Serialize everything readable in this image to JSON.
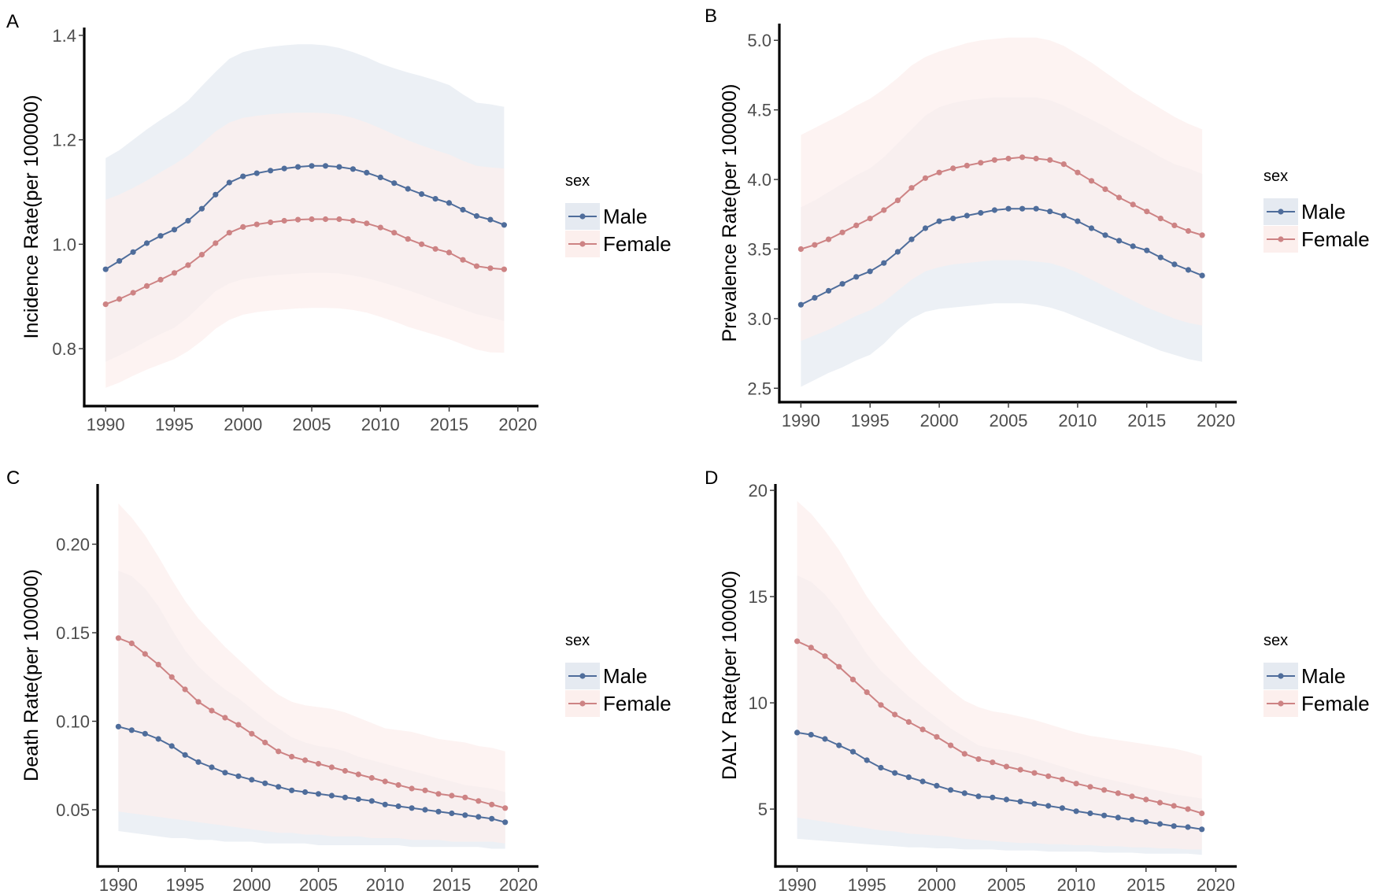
{
  "colors": {
    "male": "#4f6d9b",
    "female": "#cd8384",
    "male_band": "#e5eaf1",
    "female_band": "#fcefed"
  },
  "legend": {
    "title": "sex",
    "items": [
      "Male",
      "Female"
    ]
  },
  "chart_data": [
    {
      "type": "line",
      "panel": "A",
      "ylabel": "Incidence Rate(per 100000)",
      "xlabel": "",
      "xlim": [
        1988.5,
        2021.5
      ],
      "ylim": [
        0.69,
        1.415
      ],
      "xticks": [
        1990,
        1995,
        2000,
        2005,
        2010,
        2015,
        2020
      ],
      "yticks": [
        0.8,
        1.0,
        1.2,
        1.4
      ],
      "ytick_labels": [
        "0.8",
        "1.0",
        "1.2",
        "1.4"
      ],
      "x": [
        1990,
        1991,
        1992,
        1993,
        1994,
        1995,
        1996,
        1997,
        1998,
        1999,
        2000,
        2001,
        2002,
        2003,
        2004,
        2005,
        2006,
        2007,
        2008,
        2009,
        2010,
        2011,
        2012,
        2013,
        2014,
        2015,
        2016,
        2017,
        2018,
        2019
      ],
      "series": [
        {
          "name": "Male",
          "values": [
            0.952,
            0.968,
            0.985,
            1.002,
            1.016,
            1.028,
            1.045,
            1.068,
            1.095,
            1.118,
            1.13,
            1.136,
            1.141,
            1.145,
            1.148,
            1.15,
            1.15,
            1.148,
            1.144,
            1.137,
            1.128,
            1.117,
            1.106,
            1.096,
            1.087,
            1.079,
            1.066,
            1.054,
            1.047,
            1.037
          ],
          "lower": [
            0.775,
            0.787,
            0.8,
            0.815,
            0.828,
            0.84,
            0.86,
            0.885,
            0.91,
            0.925,
            0.933,
            0.937,
            0.94,
            0.942,
            0.944,
            0.945,
            0.945,
            0.944,
            0.94,
            0.935,
            0.928,
            0.92,
            0.912,
            0.903,
            0.893,
            0.884,
            0.875,
            0.866,
            0.86,
            0.853
          ],
          "upper": [
            1.165,
            1.18,
            1.2,
            1.22,
            1.238,
            1.255,
            1.275,
            1.303,
            1.33,
            1.355,
            1.368,
            1.374,
            1.378,
            1.381,
            1.383,
            1.383,
            1.381,
            1.376,
            1.368,
            1.358,
            1.346,
            1.337,
            1.329,
            1.322,
            1.314,
            1.305,
            1.287,
            1.271,
            1.268,
            1.263
          ]
        },
        {
          "name": "Female",
          "values": [
            0.885,
            0.895,
            0.907,
            0.92,
            0.932,
            0.945,
            0.96,
            0.98,
            1.002,
            1.022,
            1.033,
            1.038,
            1.042,
            1.045,
            1.047,
            1.048,
            1.048,
            1.048,
            1.045,
            1.04,
            1.032,
            1.022,
            1.01,
            1.0,
            0.991,
            0.984,
            0.97,
            0.958,
            0.954,
            0.952
          ],
          "lower": [
            0.725,
            0.735,
            0.748,
            0.76,
            0.77,
            0.78,
            0.795,
            0.815,
            0.838,
            0.855,
            0.865,
            0.87,
            0.873,
            0.875,
            0.877,
            0.878,
            0.878,
            0.877,
            0.874,
            0.869,
            0.861,
            0.852,
            0.842,
            0.834,
            0.826,
            0.818,
            0.808,
            0.798,
            0.793,
            0.792
          ],
          "upper": [
            1.085,
            1.095,
            1.108,
            1.122,
            1.138,
            1.153,
            1.17,
            1.193,
            1.216,
            1.233,
            1.242,
            1.246,
            1.249,
            1.251,
            1.252,
            1.252,
            1.251,
            1.248,
            1.242,
            1.233,
            1.222,
            1.21,
            1.199,
            1.189,
            1.18,
            1.172,
            1.16,
            1.15,
            1.147,
            1.145
          ]
        }
      ]
    },
    {
      "type": "line",
      "panel": "B",
      "ylabel": "Prevalence Rate(per 100000)",
      "xlabel": "",
      "xlim": [
        1988.5,
        2021.5
      ],
      "ylim": [
        2.4,
        5.12
      ],
      "xticks": [
        1990,
        1995,
        2000,
        2005,
        2010,
        2015,
        2020
      ],
      "yticks": [
        2.5,
        3.0,
        3.5,
        4.0,
        4.5,
        5.0
      ],
      "ytick_labels": [
        "2.5",
        "3.0",
        "3.5",
        "4.0",
        "4.5",
        "5.0"
      ],
      "x": [
        1990,
        1991,
        1992,
        1993,
        1994,
        1995,
        1996,
        1997,
        1998,
        1999,
        2000,
        2001,
        2002,
        2003,
        2004,
        2005,
        2006,
        2007,
        2008,
        2009,
        2010,
        2011,
        2012,
        2013,
        2014,
        2015,
        2016,
        2017,
        2018,
        2019
      ],
      "series": [
        {
          "name": "Male",
          "values": [
            3.1,
            3.15,
            3.2,
            3.25,
            3.3,
            3.34,
            3.4,
            3.48,
            3.57,
            3.65,
            3.7,
            3.72,
            3.74,
            3.76,
            3.78,
            3.79,
            3.79,
            3.79,
            3.77,
            3.74,
            3.7,
            3.65,
            3.6,
            3.56,
            3.52,
            3.49,
            3.44,
            3.39,
            3.35,
            3.31
          ],
          "lower": [
            2.51,
            2.56,
            2.61,
            2.65,
            2.7,
            2.74,
            2.82,
            2.92,
            3.0,
            3.05,
            3.07,
            3.08,
            3.09,
            3.1,
            3.11,
            3.11,
            3.11,
            3.1,
            3.08,
            3.05,
            3.01,
            2.97,
            2.93,
            2.89,
            2.85,
            2.81,
            2.77,
            2.74,
            2.71,
            2.69
          ],
          "upper": [
            3.8,
            3.85,
            3.91,
            3.97,
            4.03,
            4.08,
            4.16,
            4.26,
            4.36,
            4.46,
            4.52,
            4.55,
            4.57,
            4.58,
            4.59,
            4.59,
            4.59,
            4.59,
            4.57,
            4.53,
            4.48,
            4.43,
            4.38,
            4.32,
            4.27,
            4.22,
            4.16,
            4.11,
            4.08,
            4.04
          ]
        },
        {
          "name": "Female",
          "values": [
            3.5,
            3.53,
            3.57,
            3.62,
            3.67,
            3.72,
            3.78,
            3.85,
            3.94,
            4.01,
            4.05,
            4.08,
            4.1,
            4.12,
            4.14,
            4.15,
            4.16,
            4.15,
            4.14,
            4.11,
            4.05,
            3.99,
            3.93,
            3.87,
            3.82,
            3.77,
            3.72,
            3.67,
            3.63,
            3.6
          ],
          "lower": [
            2.84,
            2.88,
            2.92,
            2.97,
            3.02,
            3.06,
            3.12,
            3.2,
            3.28,
            3.34,
            3.37,
            3.39,
            3.4,
            3.41,
            3.42,
            3.42,
            3.42,
            3.41,
            3.4,
            3.37,
            3.33,
            3.28,
            3.23,
            3.18,
            3.13,
            3.08,
            3.04,
            3.0,
            2.97,
            2.95
          ],
          "upper": [
            4.32,
            4.37,
            4.42,
            4.47,
            4.53,
            4.58,
            4.65,
            4.73,
            4.82,
            4.88,
            4.92,
            4.95,
            4.98,
            5.0,
            5.01,
            5.02,
            5.02,
            5.02,
            5.0,
            4.96,
            4.9,
            4.84,
            4.77,
            4.7,
            4.63,
            4.57,
            4.51,
            4.45,
            4.4,
            4.36
          ]
        }
      ]
    },
    {
      "type": "line",
      "panel": "C",
      "ylabel": "Death Rate(per 100000)",
      "xlabel": "",
      "xlim": [
        1988.5,
        2021.5
      ],
      "ylim": [
        0.018,
        0.234
      ],
      "xticks": [
        1990,
        1995,
        2000,
        2005,
        2010,
        2015,
        2020
      ],
      "yticks": [
        0.05,
        0.1,
        0.15,
        0.2
      ],
      "ytick_labels": [
        "0.05",
        "0.10",
        "0.15",
        "0.20"
      ],
      "x": [
        1990,
        1991,
        1992,
        1993,
        1994,
        1995,
        1996,
        1997,
        1998,
        1999,
        2000,
        2001,
        2002,
        2003,
        2004,
        2005,
        2006,
        2007,
        2008,
        2009,
        2010,
        2011,
        2012,
        2013,
        2014,
        2015,
        2016,
        2017,
        2018,
        2019
      ],
      "series": [
        {
          "name": "Male",
          "values": [
            0.097,
            0.095,
            0.093,
            0.09,
            0.086,
            0.081,
            0.077,
            0.074,
            0.071,
            0.069,
            0.067,
            0.065,
            0.063,
            0.061,
            0.06,
            0.059,
            0.058,
            0.057,
            0.056,
            0.055,
            0.053,
            0.052,
            0.051,
            0.05,
            0.049,
            0.048,
            0.047,
            0.046,
            0.045,
            0.043
          ],
          "lower": [
            0.038,
            0.037,
            0.036,
            0.035,
            0.034,
            0.034,
            0.033,
            0.033,
            0.032,
            0.032,
            0.032,
            0.031,
            0.031,
            0.031,
            0.031,
            0.03,
            0.03,
            0.03,
            0.03,
            0.03,
            0.03,
            0.03,
            0.029,
            0.029,
            0.029,
            0.029,
            0.029,
            0.029,
            0.028,
            0.028
          ],
          "upper": [
            0.185,
            0.182,
            0.175,
            0.165,
            0.152,
            0.14,
            0.131,
            0.124,
            0.118,
            0.113,
            0.107,
            0.101,
            0.096,
            0.091,
            0.088,
            0.086,
            0.085,
            0.083,
            0.08,
            0.078,
            0.076,
            0.074,
            0.072,
            0.07,
            0.068,
            0.066,
            0.064,
            0.063,
            0.062,
            0.06
          ]
        },
        {
          "name": "Female",
          "values": [
            0.147,
            0.144,
            0.138,
            0.132,
            0.125,
            0.118,
            0.111,
            0.106,
            0.102,
            0.098,
            0.093,
            0.088,
            0.083,
            0.08,
            0.078,
            0.076,
            0.074,
            0.072,
            0.07,
            0.068,
            0.066,
            0.064,
            0.062,
            0.061,
            0.059,
            0.058,
            0.057,
            0.055,
            0.053,
            0.051
          ],
          "lower": [
            0.049,
            0.048,
            0.047,
            0.046,
            0.045,
            0.044,
            0.043,
            0.042,
            0.041,
            0.04,
            0.039,
            0.038,
            0.037,
            0.037,
            0.036,
            0.036,
            0.035,
            0.035,
            0.035,
            0.034,
            0.034,
            0.034,
            0.033,
            0.033,
            0.033,
            0.032,
            0.032,
            0.032,
            0.032,
            0.031
          ],
          "upper": [
            0.223,
            0.215,
            0.205,
            0.193,
            0.18,
            0.168,
            0.158,
            0.15,
            0.142,
            0.135,
            0.128,
            0.121,
            0.115,
            0.111,
            0.109,
            0.108,
            0.107,
            0.105,
            0.102,
            0.099,
            0.096,
            0.095,
            0.094,
            0.092,
            0.09,
            0.089,
            0.088,
            0.086,
            0.085,
            0.083
          ]
        }
      ]
    },
    {
      "type": "line",
      "panel": "D",
      "ylabel": "DALY Rate(per 100000)",
      "xlabel": "",
      "xlim": [
        1988.5,
        2021.5
      ],
      "ylim": [
        2.3,
        20.3
      ],
      "xticks": [
        1990,
        1995,
        2000,
        2005,
        2010,
        2015,
        2020
      ],
      "yticks": [
        5,
        10,
        15,
        20
      ],
      "ytick_labels": [
        "5",
        "10",
        "15",
        "20"
      ],
      "x": [
        1990,
        1991,
        1992,
        1993,
        1994,
        1995,
        1996,
        1997,
        1998,
        1999,
        2000,
        2001,
        2002,
        2003,
        2004,
        2005,
        2006,
        2007,
        2008,
        2009,
        2010,
        2011,
        2012,
        2013,
        2014,
        2015,
        2016,
        2017,
        2018,
        2019
      ],
      "series": [
        {
          "name": "Male",
          "values": [
            8.6,
            8.5,
            8.3,
            8.0,
            7.7,
            7.3,
            6.95,
            6.7,
            6.5,
            6.3,
            6.1,
            5.9,
            5.75,
            5.6,
            5.55,
            5.45,
            5.35,
            5.25,
            5.15,
            5.05,
            4.9,
            4.8,
            4.7,
            4.6,
            4.5,
            4.4,
            4.3,
            4.2,
            4.15,
            4.05
          ],
          "lower": [
            3.6,
            3.55,
            3.5,
            3.45,
            3.4,
            3.35,
            3.3,
            3.25,
            3.2,
            3.2,
            3.15,
            3.15,
            3.1,
            3.1,
            3.1,
            3.05,
            3.05,
            3.05,
            3.0,
            3.0,
            3.0,
            3.0,
            2.95,
            2.95,
            2.95,
            2.9,
            2.9,
            2.9,
            2.9,
            2.85
          ],
          "upper": [
            16.0,
            15.7,
            15.1,
            14.3,
            13.3,
            12.3,
            11.5,
            10.9,
            10.3,
            9.8,
            9.3,
            8.8,
            8.4,
            8.0,
            7.85,
            7.75,
            7.6,
            7.4,
            7.2,
            7.0,
            6.8,
            6.6,
            6.45,
            6.3,
            6.15,
            6.0,
            5.85,
            5.7,
            5.6,
            5.5
          ]
        },
        {
          "name": "Female",
          "values": [
            12.9,
            12.6,
            12.2,
            11.7,
            11.1,
            10.5,
            9.9,
            9.45,
            9.1,
            8.75,
            8.4,
            8.0,
            7.6,
            7.35,
            7.2,
            7.0,
            6.85,
            6.7,
            6.55,
            6.4,
            6.2,
            6.05,
            5.9,
            5.75,
            5.6,
            5.45,
            5.3,
            5.15,
            5.0,
            4.8
          ],
          "lower": [
            4.6,
            4.5,
            4.4,
            4.3,
            4.2,
            4.1,
            4.0,
            3.95,
            3.85,
            3.8,
            3.75,
            3.7,
            3.6,
            3.55,
            3.5,
            3.45,
            3.4,
            3.4,
            3.35,
            3.35,
            3.3,
            3.3,
            3.25,
            3.25,
            3.2,
            3.2,
            3.15,
            3.15,
            3.1,
            3.1
          ],
          "upper": [
            19.5,
            18.9,
            18.1,
            17.2,
            16.1,
            15.0,
            14.1,
            13.3,
            12.5,
            11.8,
            11.2,
            10.6,
            10.1,
            9.8,
            9.6,
            9.5,
            9.35,
            9.2,
            9.0,
            8.8,
            8.6,
            8.45,
            8.35,
            8.25,
            8.15,
            8.05,
            7.95,
            7.85,
            7.7,
            7.5
          ]
        }
      ]
    }
  ]
}
